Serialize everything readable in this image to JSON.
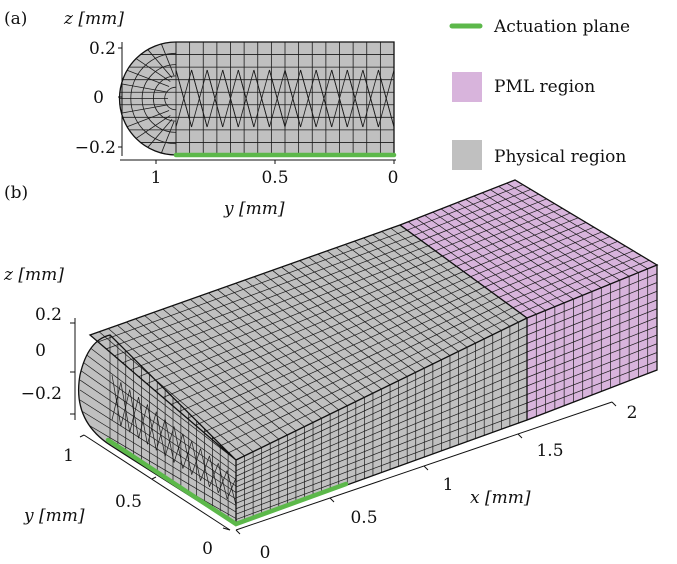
{
  "panel_a": {
    "tag": "(a)",
    "z_axis_label": "z [mm]",
    "z_ticks": [
      "0.2",
      "0",
      "−0.2"
    ],
    "y_ticks": [
      "1",
      "0.5",
      "0"
    ],
    "y_axis_label": "y [mm]"
  },
  "legend": {
    "items": [
      {
        "label": "Actuation plane",
        "color": "#5cb84a"
      },
      {
        "label": "PML region",
        "color": "#d8b4dc"
      },
      {
        "label": "Physical region",
        "color": "#c0c0c0"
      }
    ]
  },
  "panel_b": {
    "tag": "(b)",
    "z_axis_label": "z [mm]",
    "z_ticks": [
      "0.2",
      "0",
      "−0.2"
    ],
    "y_axis_label": "y [mm]",
    "y_ticks": [
      "1",
      "0.5",
      "0"
    ],
    "x_axis_label": "x [mm]",
    "x_ticks": [
      "0",
      "0.5",
      "1",
      "1.5",
      "2"
    ]
  },
  "colors": {
    "physical": "#c0c0c0",
    "pml": "#d8b4dc",
    "actuation": "#5cb84a",
    "mesh_line": "#1a1a1a"
  }
}
